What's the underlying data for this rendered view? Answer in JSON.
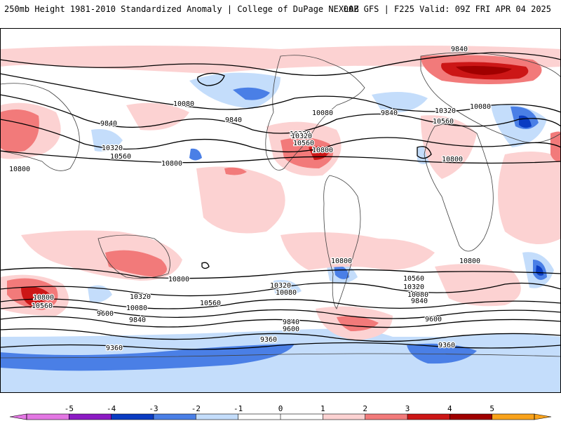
{
  "header": {
    "title_left": "250mb Height 1981-2010 Standardized Anomaly | College of DuPage NEXLAB",
    "title_right": "00Z GFS | F225 Valid: 09Z FRI APR 04 2025"
  },
  "colors": {
    "neg5": "#e377e3",
    "neg4": "#8c1ac4",
    "neg3": "#0a3cc2",
    "neg2": "#4a7fe6",
    "neg1": "#c4ddfb",
    "zero": "#ffffff",
    "pos1": "#fcd2d2",
    "pos2": "#f27a7a",
    "pos3": "#cc1616",
    "pos4": "#a00000",
    "pos5": "#f9a21a",
    "contour": "#000000",
    "coast": "#404040"
  },
  "legend": {
    "ticks": [
      "-5",
      "-4",
      "-3",
      "-2",
      "-1",
      "0",
      "1",
      "2",
      "3",
      "4",
      "5"
    ]
  },
  "contour_labels": [
    "9840",
    "10080",
    "10320",
    "10560",
    "10800",
    "9840",
    "10320",
    "10560",
    "10800",
    "9840",
    "10080",
    "10320",
    "10560",
    "10800",
    "9840",
    "10320",
    "10080",
    "10800",
    "10560",
    "10800",
    "10800",
    "10800",
    "10320",
    "10080",
    "10560",
    "10080",
    "10320",
    "10560",
    "10800",
    "10560",
    "10320",
    "10080",
    "9840",
    "9600",
    "9840",
    "9600",
    "9840",
    "9600",
    "9360",
    "9360",
    "9360",
    "10800",
    "10560",
    "10800",
    "9600"
  ]
}
